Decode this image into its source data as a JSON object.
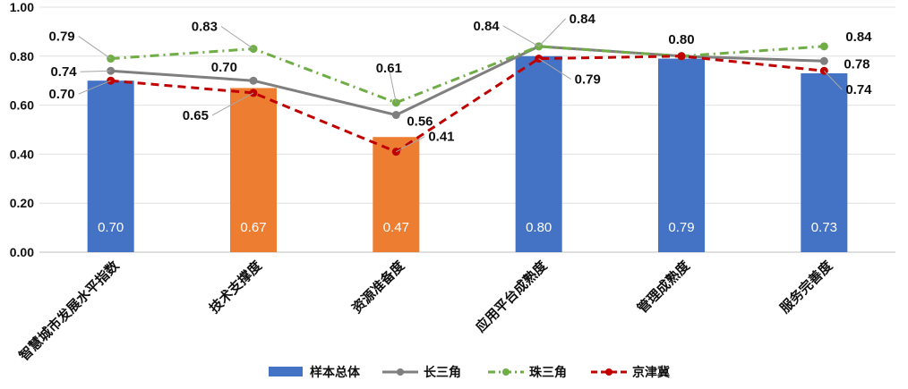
{
  "chart_data": {
    "type": "bar",
    "categories": [
      "智慧城市发展水平指数",
      "技术支撑度",
      "资源准备度",
      "应用平台成熟度",
      "管理成熟度",
      "服务完善度"
    ],
    "ylim": [
      0,
      1
    ],
    "yticks": [
      "0.00",
      "0.20",
      "0.40",
      "0.60",
      "0.80",
      "1.00"
    ],
    "grid": true,
    "legend_position": "bottom",
    "series": [
      {
        "name": "样本总体",
        "kind": "bar",
        "values": [
          0.7,
          0.67,
          0.47,
          0.8,
          0.79,
          0.73
        ],
        "labels": [
          "0.70",
          "0.67",
          "0.47",
          "0.80",
          "0.79",
          "0.73"
        ],
        "colors": [
          "#4472c4",
          "#ed7d31",
          "#ed7d31",
          "#4472c4",
          "#4472c4",
          "#4472c4"
        ]
      },
      {
        "name": "长三角",
        "kind": "line",
        "color": "#7f7f7f",
        "values": [
          0.74,
          0.7,
          0.56,
          0.84,
          0.8,
          0.78
        ],
        "labels": [
          "0.74",
          "0.70",
          "0.56",
          "0.84",
          "0.80",
          "0.78"
        ]
      },
      {
        "name": "珠三角",
        "kind": "line",
        "color": "#70ad47",
        "values": [
          0.79,
          0.83,
          0.61,
          0.84,
          0.8,
          0.84
        ],
        "labels": [
          "0.79",
          "0.83",
          "0.61",
          "0.84",
          "",
          "0.84"
        ]
      },
      {
        "name": "京津冀",
        "kind": "line",
        "color": "#c00000",
        "values": [
          0.7,
          0.65,
          0.41,
          0.79,
          0.8,
          0.74
        ],
        "labels": [
          "0.70",
          "0.65",
          "0.41",
          "0.79",
          "",
          "0.74"
        ]
      }
    ]
  }
}
